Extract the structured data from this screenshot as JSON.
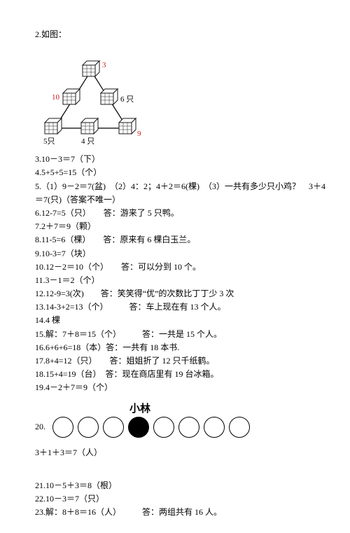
{
  "title": "2.如图：",
  "diagram": {
    "labels": {
      "top_right": "3",
      "mid_left": "10",
      "mid_right": "6 只",
      "bot_left": "5只",
      "bot_mid": "4 只",
      "bot_right": "9"
    },
    "colors": {
      "red": "#cc1b1a",
      "black": "#000000"
    },
    "cube_stroke": "#1a1a1a"
  },
  "lines": {
    "l3": "3.10－3＝7（下）",
    "l4": "4.5+5+5=15（个）",
    "l5a": "5.（1）9－2＝7(盆)　（2）4：2；4＋2＝6(棵)　（3）一共有多少只小鸡？　3＋4",
    "l5b": "＝7(只)（答案不唯一）",
    "l6": "6.12-7=5（只）　　答：游来了 5 只鸭。",
    "l7": "7.2＋7＝9（颗）",
    "l8": "8.11-5=6（棵）　　答：原来有 6 棵白玉兰。",
    "l9": "9.10-3=7（块）",
    "l10": "10.12－2＝10（个）　　答：可以分到 10 个。",
    "l11": "11.3－1＝2（个）",
    "l12": "12.12-9=3(次)　　答：笑笑得“优”的次数比丁丁少 3 次",
    "l13": "13.14-3+2=13（个）　　　答：车上现在有 13 个人。",
    "l14": "14.4 棵",
    "l15": "15.解：7＋8＝15（个）　　　答：一共是 15 个人。",
    "l16": "16.6+6+6=18（本）答：一共有 18 本书.",
    "l17": "17.8+4=12（只）　　答：姐姐折了 12 只千纸鹤。",
    "l18": "18.15+4=19（台）　答：现在商店里有 19 台冰箱。",
    "l19": "19.4－2＋7＝9（个）"
  },
  "q20": {
    "num": "20.",
    "title": "小林",
    "filled_index": 3,
    "count": 8,
    "eq": "3＋1＋3＝7（人）"
  },
  "tail": {
    "l21": "21.10－5＋3＝8（根）",
    "l22": "22.10－3＝7（只）",
    "l23": "23.解：8＋8＝16（人）　　　答：两组共有 16 人。"
  }
}
